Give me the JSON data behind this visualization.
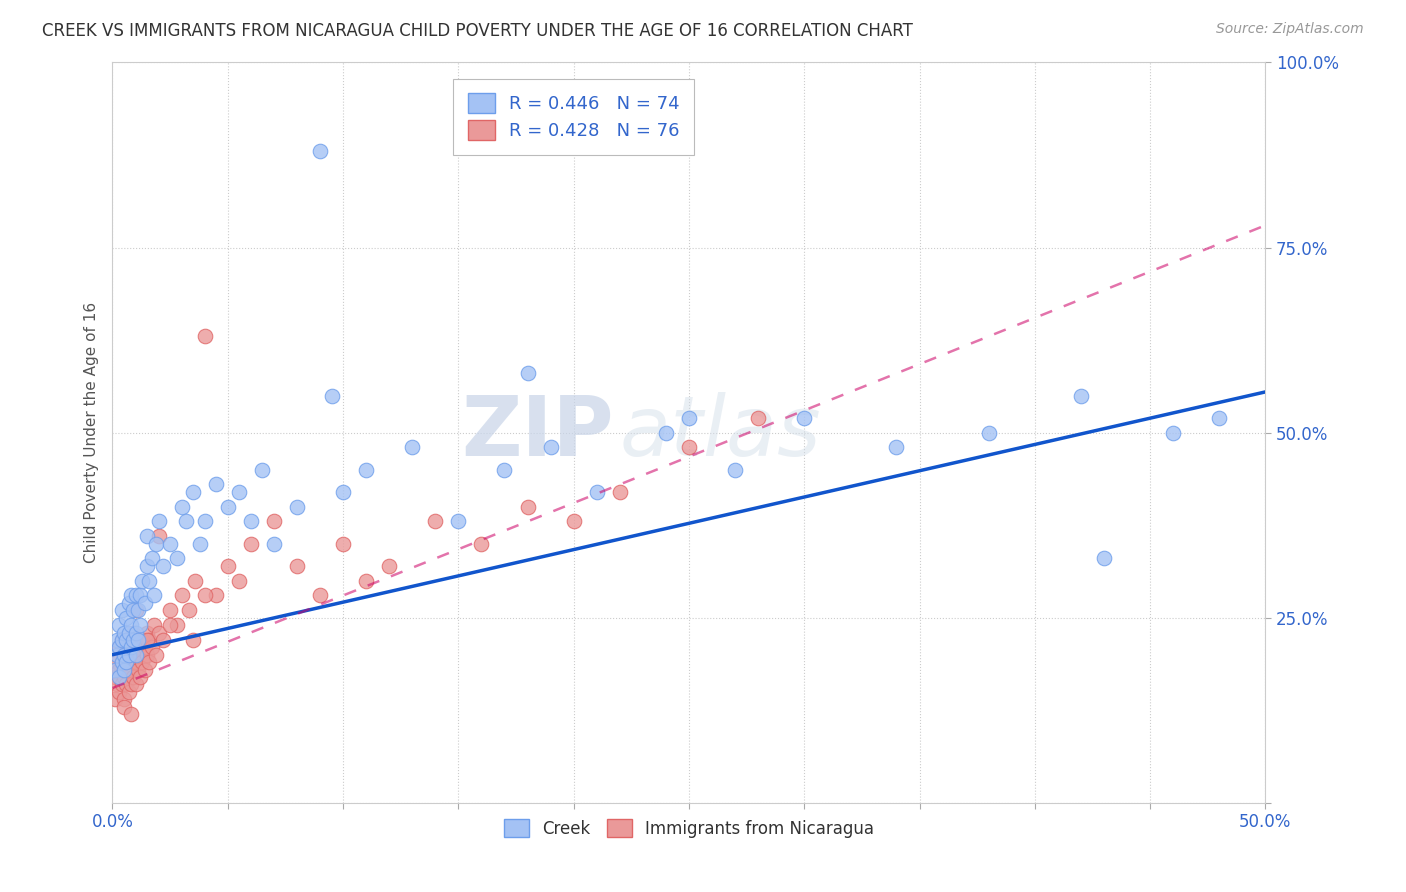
{
  "title": "CREEK VS IMMIGRANTS FROM NICARAGUA CHILD POVERTY UNDER THE AGE OF 16 CORRELATION CHART",
  "source": "Source: ZipAtlas.com",
  "ylabel": "Child Poverty Under the Age of 16",
  "xlim": [
    0,
    0.5
  ],
  "ylim": [
    0,
    1.0
  ],
  "xticks": [
    0.0,
    0.05,
    0.1,
    0.15,
    0.2,
    0.25,
    0.3,
    0.35,
    0.4,
    0.45,
    0.5
  ],
  "yticks": [
    0.0,
    0.25,
    0.5,
    0.75,
    1.0
  ],
  "creek_color": "#a4c2f4",
  "creek_edge": "#6d9eeb",
  "nicaragua_color": "#ea9999",
  "nicaragua_edge": "#e06666",
  "trend_creek_color": "#1155cc",
  "trend_nicaragua_color": "#cc0066",
  "trend_nicaragua_dash_color": "#cc9999",
  "legend_creek_label": "R = 0.446   N = 74",
  "legend_nicaragua_label": "R = 0.428   N = 76",
  "watermark_zip": "ZIP",
  "watermark_atlas": "atlas",
  "background_color": "#ffffff",
  "grid_color": "#cccccc",
  "creek_x": [
    0.001,
    0.002,
    0.002,
    0.003,
    0.003,
    0.003,
    0.004,
    0.004,
    0.004,
    0.005,
    0.005,
    0.005,
    0.006,
    0.006,
    0.006,
    0.007,
    0.007,
    0.007,
    0.008,
    0.008,
    0.008,
    0.009,
    0.009,
    0.01,
    0.01,
    0.01,
    0.011,
    0.011,
    0.012,
    0.012,
    0.013,
    0.014,
    0.015,
    0.015,
    0.016,
    0.017,
    0.018,
    0.019,
    0.02,
    0.022,
    0.025,
    0.028,
    0.03,
    0.032,
    0.035,
    0.038,
    0.04,
    0.045,
    0.05,
    0.055,
    0.06,
    0.065,
    0.07,
    0.08,
    0.09,
    0.1,
    0.11,
    0.13,
    0.15,
    0.17,
    0.19,
    0.21,
    0.24,
    0.27,
    0.3,
    0.34,
    0.38,
    0.42,
    0.46,
    0.48,
    0.095,
    0.18,
    0.25,
    0.43
  ],
  "creek_y": [
    0.18,
    0.2,
    0.22,
    0.17,
    0.21,
    0.24,
    0.19,
    0.22,
    0.26,
    0.18,
    0.2,
    0.23,
    0.19,
    0.22,
    0.25,
    0.2,
    0.23,
    0.27,
    0.21,
    0.24,
    0.28,
    0.22,
    0.26,
    0.2,
    0.23,
    0.28,
    0.22,
    0.26,
    0.24,
    0.28,
    0.3,
    0.27,
    0.32,
    0.36,
    0.3,
    0.33,
    0.28,
    0.35,
    0.38,
    0.32,
    0.35,
    0.33,
    0.4,
    0.38,
    0.42,
    0.35,
    0.38,
    0.43,
    0.4,
    0.42,
    0.38,
    0.45,
    0.35,
    0.4,
    0.88,
    0.42,
    0.45,
    0.48,
    0.38,
    0.45,
    0.48,
    0.42,
    0.5,
    0.45,
    0.52,
    0.48,
    0.5,
    0.55,
    0.5,
    0.52,
    0.55,
    0.58,
    0.52,
    0.33
  ],
  "nicaragua_x": [
    0.001,
    0.001,
    0.002,
    0.002,
    0.003,
    0.003,
    0.003,
    0.004,
    0.004,
    0.004,
    0.005,
    0.005,
    0.005,
    0.006,
    0.006,
    0.006,
    0.007,
    0.007,
    0.007,
    0.008,
    0.008,
    0.008,
    0.009,
    0.009,
    0.009,
    0.01,
    0.01,
    0.01,
    0.011,
    0.011,
    0.012,
    0.012,
    0.013,
    0.013,
    0.014,
    0.014,
    0.015,
    0.015,
    0.016,
    0.016,
    0.017,
    0.018,
    0.019,
    0.02,
    0.022,
    0.025,
    0.028,
    0.03,
    0.033,
    0.036,
    0.04,
    0.045,
    0.05,
    0.055,
    0.06,
    0.07,
    0.08,
    0.09,
    0.1,
    0.11,
    0.12,
    0.14,
    0.16,
    0.18,
    0.2,
    0.22,
    0.25,
    0.28,
    0.02,
    0.04,
    0.01,
    0.005,
    0.015,
    0.008,
    0.025,
    0.035
  ],
  "nicaragua_y": [
    0.14,
    0.17,
    0.16,
    0.19,
    0.15,
    0.18,
    0.21,
    0.16,
    0.19,
    0.22,
    0.14,
    0.17,
    0.2,
    0.16,
    0.19,
    0.22,
    0.15,
    0.18,
    0.21,
    0.16,
    0.19,
    0.22,
    0.17,
    0.2,
    0.23,
    0.16,
    0.19,
    0.22,
    0.18,
    0.21,
    0.17,
    0.2,
    0.19,
    0.22,
    0.18,
    0.21,
    0.2,
    0.23,
    0.19,
    0.22,
    0.21,
    0.24,
    0.2,
    0.23,
    0.22,
    0.26,
    0.24,
    0.28,
    0.26,
    0.3,
    0.63,
    0.28,
    0.32,
    0.3,
    0.35,
    0.38,
    0.32,
    0.28,
    0.35,
    0.3,
    0.32,
    0.38,
    0.35,
    0.4,
    0.38,
    0.42,
    0.48,
    0.52,
    0.36,
    0.28,
    0.26,
    0.13,
    0.22,
    0.12,
    0.24,
    0.22
  ],
  "creek_trend_x0": 0.0,
  "creek_trend_y0": 0.2,
  "creek_trend_x1": 0.5,
  "creek_trend_y1": 0.555,
  "nicaragua_trend_x0": 0.0,
  "nicaragua_trend_y0": 0.155,
  "nicaragua_trend_x1": 0.5,
  "nicaragua_trend_y1": 0.78
}
